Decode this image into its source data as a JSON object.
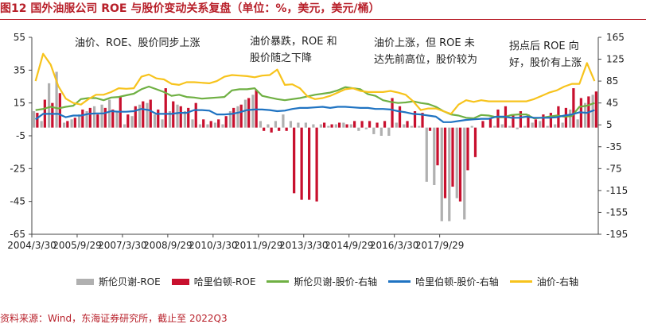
{
  "title": "图12 国外油服公司 ROE 与股价变动关系复盘（单位：%，美元，美元/桶）",
  "source": "资料来源：Wind，东海证券研究所，截止至 2022Q3",
  "annotations": [
    "油价、ROE、股价同步上涨",
    "油价暴跌，ROE 和\n股价随之下降",
    "油价上涨，但 ROE 未\n达先前高位，股价较为",
    "拐点后 ROE 向\n好，股价有上涨"
  ],
  "colors": {
    "slb_roe": "#b0b0b0",
    "hal_roe": "#c8102e",
    "slb_price": "#6fb043",
    "hal_price": "#1f73c2",
    "oil": "#f7c31c",
    "title": "#b8202a"
  },
  "chart_data": {
    "type": "bar+line",
    "x_tick_labels": [
      "2004/3/30",
      "2005/9/29",
      "2007/3/30",
      "2008/9/29",
      "2010/3/30",
      "2011/9/29",
      "2013/3/30",
      "2014/9/29",
      "2016/3/30",
      "2017/9/29"
    ],
    "y_left": {
      "ticks": [
        55,
        35,
        15,
        -5,
        -25,
        -45,
        -65
      ],
      "lim": [
        -65,
        55
      ]
    },
    "y_right": {
      "ticks": [
        165,
        125,
        85,
        45,
        5,
        -35,
        -75,
        -115,
        -155,
        -195
      ],
      "lim": [
        -195,
        165
      ]
    },
    "x": [
      "2004Q1",
      "2004Q2",
      "2004Q3",
      "2004Q4",
      "2005Q1",
      "2005Q2",
      "2005Q3",
      "2005Q4",
      "2006Q1",
      "2006Q2",
      "2006Q3",
      "2006Q4",
      "2007Q1",
      "2007Q2",
      "2007Q3",
      "2007Q4",
      "2008Q1",
      "2008Q2",
      "2008Q3",
      "2008Q4",
      "2009Q1",
      "2009Q2",
      "2009Q3",
      "2009Q4",
      "2010Q1",
      "2010Q2",
      "2010Q3",
      "2010Q4",
      "2011Q1",
      "2011Q2",
      "2011Q3",
      "2011Q4",
      "2012Q1",
      "2012Q2",
      "2012Q3",
      "2012Q4",
      "2013Q1",
      "2013Q2",
      "2013Q3",
      "2013Q4",
      "2014Q1",
      "2014Q2",
      "2014Q3",
      "2014Q4",
      "2015Q1",
      "2015Q2",
      "2015Q3",
      "2015Q4",
      "2016Q1",
      "2016Q2",
      "2016Q3",
      "2016Q4",
      "2017Q1",
      "2017Q2",
      "2017Q3",
      "2017Q4",
      "2018Q1",
      "2018Q2",
      "2018Q3",
      "2018Q4",
      "2019Q1",
      "2019Q2",
      "2019Q3",
      "2019Q4",
      "2020Q1",
      "2020Q2",
      "2020Q3",
      "2020Q4",
      "2021Q1",
      "2021Q2",
      "2021Q3",
      "2021Q4",
      "2022Q1",
      "2022Q2",
      "2022Q3"
    ],
    "series": [
      {
        "name": "斯伦贝谢-ROE",
        "kind": "bar",
        "axis": "left",
        "values": [
          10,
          4,
          27,
          34,
          3,
          5,
          8,
          10,
          13,
          14,
          17,
          10,
          2,
          7,
          14,
          15,
          8,
          5,
          10,
          14,
          10,
          5,
          2,
          2,
          3,
          2,
          10,
          13,
          17,
          20,
          4,
          2,
          4,
          8,
          4,
          3,
          3,
          2,
          2,
          1,
          2,
          3,
          2,
          -2,
          -1,
          -4,
          -5,
          -5,
          3,
          2,
          1,
          1,
          -33,
          -35,
          -57,
          -57,
          -43,
          -56,
          1,
          0,
          0,
          1,
          2,
          1,
          -1,
          1,
          3,
          4,
          1,
          2,
          3,
          11,
          5,
          15,
          20
        ]
      },
      {
        "name": "哈里伯顿-ROE",
        "kind": "bar",
        "axis": "left",
        "values": [
          9,
          17,
          15,
          21,
          4,
          6,
          11,
          12,
          8,
          12,
          11,
          19,
          8,
          13,
          16,
          17,
          11,
          24,
          16,
          13,
          12,
          15,
          5,
          4,
          5,
          7,
          12,
          14,
          18,
          23,
          -2,
          -3,
          -2,
          -2,
          -40,
          -44,
          -44,
          -45,
          3,
          2,
          3,
          2,
          4,
          4,
          4,
          3,
          4,
          18,
          13,
          4,
          10,
          9,
          -2,
          -23,
          -43,
          -36,
          -45,
          -26,
          -18,
          4,
          6,
          11,
          13,
          8,
          10,
          8,
          5,
          8,
          9,
          13,
          12,
          24,
          18,
          19,
          22
        ]
      },
      {
        "name": "斯伦贝谢-股价-右轴",
        "kind": "line",
        "axis": "right",
        "values": [
          32,
          34,
          38,
          35,
          38,
          40,
          52,
          54,
          54,
          50,
          55,
          56,
          59,
          62,
          70,
          75,
          70,
          65,
          58,
          60,
          56,
          55,
          53,
          54,
          55,
          56,
          68,
          70,
          70,
          72,
          58,
          55,
          52,
          50,
          52,
          54,
          57,
          60,
          62,
          64,
          68,
          74,
          72,
          70,
          61,
          58,
          50,
          47,
          45,
          46,
          48,
          45,
          43,
          38,
          30,
          24,
          22,
          18,
          17,
          23,
          22,
          19,
          19,
          23,
          24,
          24,
          17,
          18,
          20,
          22,
          20,
          21,
          38,
          40,
          45
        ]
      },
      {
        "name": "哈里伯顿-股价-右轴",
        "kind": "line",
        "axis": "right",
        "values": [
          15,
          25,
          25,
          25,
          19,
          22,
          22,
          25,
          26,
          26,
          30,
          29,
          29,
          30,
          34,
          32,
          25,
          25,
          25,
          27,
          27,
          32,
          32,
          31,
          24,
          24,
          25,
          28,
          32,
          33,
          33,
          32,
          30,
          31,
          34,
          36,
          36,
          37,
          38,
          36,
          38,
          38,
          37,
          36,
          36,
          34,
          34,
          33,
          30,
          28,
          25,
          24,
          22,
          20,
          10,
          10,
          12,
          14,
          15,
          16,
          16,
          20,
          20,
          18,
          18,
          20,
          18,
          18,
          18,
          19,
          22,
          24,
          28,
          27,
          32
        ]
      },
      {
        "name": "油价-右轴",
        "kind": "line",
        "axis": "right",
        "values": [
          85,
          135,
          115,
          76,
          53,
          45,
          42,
          52,
          60,
          60,
          65,
          72,
          71,
          72,
          93,
          97,
          90,
          88,
          80,
          78,
          83,
          83,
          82,
          81,
          85,
          93,
          96,
          95,
          94,
          92,
          95,
          96,
          106,
          78,
          79,
          72,
          57,
          52,
          54,
          58,
          64,
          70,
          72,
          67,
          65,
          65,
          65,
          67,
          64,
          60,
          48,
          32,
          35,
          35,
          30,
          25,
          42,
          50,
          47,
          50,
          48,
          48,
          48,
          48,
          48,
          48,
          52,
          58,
          64,
          68,
          75,
          80,
          80,
          118,
          85
        ]
      }
    ]
  }
}
